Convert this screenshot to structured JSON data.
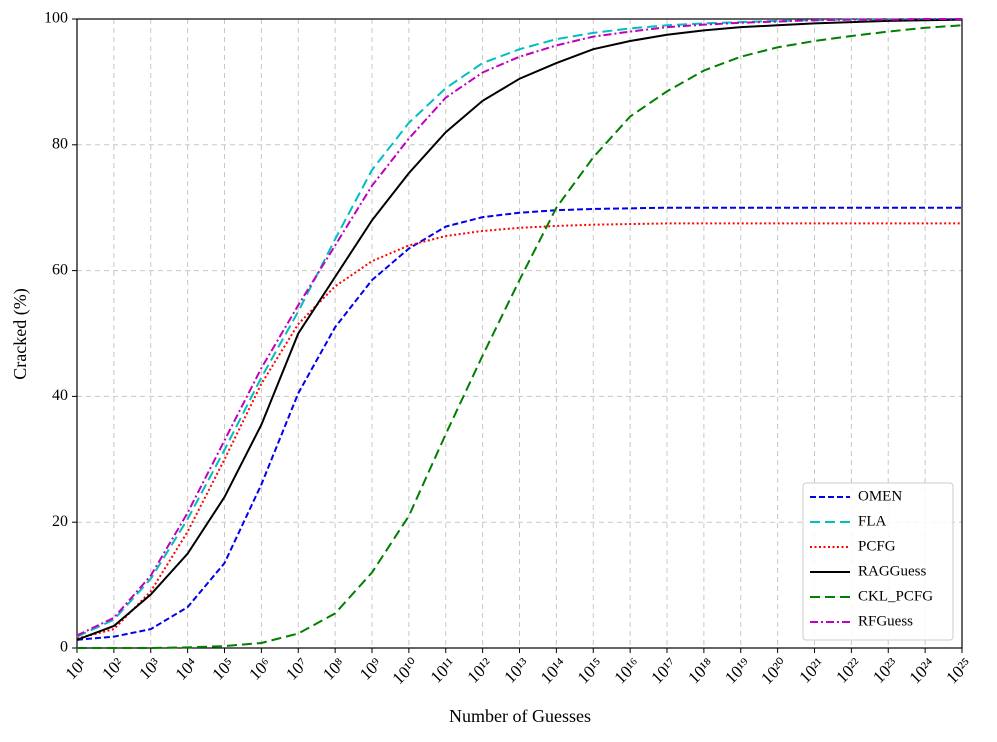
{
  "chart_data": {
    "type": "line",
    "xlabel": "Number of Guesses",
    "ylabel": "Cracked (%)",
    "x": [
      10.0,
      100.0,
      1000.0,
      10000.0,
      100000.0,
      1000000.0,
      10000000.0,
      100000000.0,
      1000000000.0,
      10000000000.0,
      100000000000.0,
      1000000000000.0,
      10000000000000.0,
      100000000000000.0,
      1000000000000000.0,
      1e+16,
      1e+17,
      1e+18,
      1e+19,
      1e+20,
      1e+21,
      1e+22,
      1e+23,
      1e+24,
      1e+25
    ],
    "xscale": "log",
    "xlim": [
      10.0,
      1e+25
    ],
    "xticks": [
      {
        "value": 10.0,
        "label": "10¹"
      },
      {
        "value": 100.0,
        "label": "10²"
      },
      {
        "value": 1000.0,
        "label": "10³"
      },
      {
        "value": 10000.0,
        "label": "10⁴"
      },
      {
        "value": 100000.0,
        "label": "10⁵"
      },
      {
        "value": 1000000.0,
        "label": "10⁶"
      },
      {
        "value": 10000000.0,
        "label": "10⁷"
      },
      {
        "value": 100000000.0,
        "label": "10⁸"
      },
      {
        "value": 1000000000.0,
        "label": "10⁹"
      },
      {
        "value": 10000000000.0,
        "label": "10¹⁰"
      },
      {
        "value": 100000000000.0,
        "label": "10¹¹"
      },
      {
        "value": 1000000000000.0,
        "label": "10¹²"
      },
      {
        "value": 10000000000000.0,
        "label": "10¹³"
      },
      {
        "value": 100000000000000.0,
        "label": "10¹⁴"
      },
      {
        "value": 1000000000000000.0,
        "label": "10¹⁵"
      },
      {
        "value": 1e+16,
        "label": "10¹⁶"
      },
      {
        "value": 1e+17,
        "label": "10¹⁷"
      },
      {
        "value": 1e+18,
        "label": "10¹⁸"
      },
      {
        "value": 1e+19,
        "label": "10¹⁹"
      },
      {
        "value": 1e+20,
        "label": "10²⁰"
      },
      {
        "value": 1e+21,
        "label": "10²¹"
      },
      {
        "value": 1e+22,
        "label": "10²²"
      },
      {
        "value": 1e+23,
        "label": "10²³"
      },
      {
        "value": 1e+24,
        "label": "10²⁴"
      },
      {
        "value": 1e+25,
        "label": "10²⁵"
      }
    ],
    "ylim": [
      0,
      100
    ],
    "yticks": [
      0,
      20,
      40,
      60,
      80,
      100
    ],
    "grid": true,
    "legend": "lower right",
    "series": [
      {
        "name": "OMEN",
        "color": "#0000ee",
        "linestyle": "dashed",
        "values": [
          1.3,
          1.8,
          3,
          6.5,
          13.5,
          26,
          40.5,
          51,
          58.5,
          63.5,
          67,
          68.5,
          69.2,
          69.6,
          69.8,
          69.9,
          70,
          70,
          70,
          70,
          70,
          70,
          70,
          70,
          70
        ]
      },
      {
        "name": "FLA",
        "color": "#00bfbf",
        "linestyle": "longdash",
        "values": [
          1.8,
          4.5,
          11,
          20.5,
          31.5,
          43,
          53.5,
          65,
          76,
          83.5,
          89,
          93,
          95.2,
          96.8,
          97.8,
          98.5,
          99,
          99.3,
          99.5,
          99.7,
          99.8,
          99.9,
          99.9,
          100,
          100
        ]
      },
      {
        "name": "PCFG",
        "color": "#ff0000",
        "linestyle": "dotted",
        "values": [
          1.5,
          3,
          9,
          18.5,
          30,
          42,
          51.5,
          57.5,
          61.5,
          64,
          65.5,
          66.3,
          66.8,
          67.1,
          67.3,
          67.4,
          67.5,
          67.5,
          67.5,
          67.5,
          67.5,
          67.5,
          67.5,
          67.5,
          67.5
        ]
      },
      {
        "name": "RAGGuess",
        "color": "#000000",
        "linestyle": "solid",
        "values": [
          1.3,
          3.5,
          8.5,
          15,
          24,
          35.5,
          50,
          59,
          68,
          75.5,
          82,
          87,
          90.5,
          93,
          95.2,
          96.5,
          97.5,
          98.2,
          98.7,
          99,
          99.3,
          99.5,
          99.7,
          99.8,
          99.9
        ]
      },
      {
        "name": "CKL_PCFG",
        "color": "#007f00",
        "linestyle": "longdash",
        "values": [
          0,
          0,
          0,
          0.1,
          0.3,
          0.8,
          2.3,
          5.5,
          12,
          21,
          34,
          46.5,
          58.5,
          70,
          78,
          84.5,
          88.5,
          91.8,
          94,
          95.5,
          96.5,
          97.3,
          98,
          98.6,
          99
        ]
      },
      {
        "name": "RFGuess",
        "color": "#bf00bf",
        "linestyle": "dashdot",
        "values": [
          2,
          4.8,
          11.5,
          21.5,
          33,
          44.5,
          54.5,
          64,
          73.5,
          81,
          87.5,
          91.5,
          94,
          95.8,
          97.2,
          98,
          98.7,
          99.1,
          99.4,
          99.6,
          99.8,
          99.9,
          99.9,
          100,
          100
        ]
      }
    ]
  }
}
